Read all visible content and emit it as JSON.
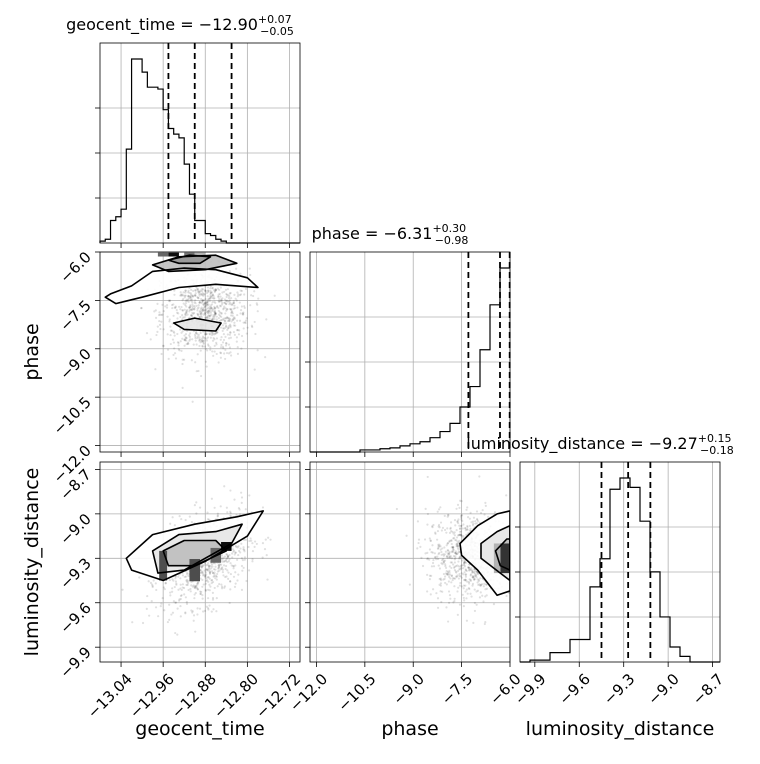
{
  "chart_data": {
    "type": "corner",
    "parameters": [
      {
        "name": "geocent_time",
        "axis_label": "geocent_time",
        "title_main": "geocent_time = −12.90",
        "title_sup": "+0.07",
        "title_sub": "−0.05",
        "range": [
          -13.08,
          -12.7
        ],
        "ticks": [
          -13.04,
          -12.96,
          -12.88,
          -12.8,
          -12.72
        ],
        "tick_labels": [
          "−13.04",
          "−12.96",
          "−12.88",
          "−12.80",
          "−12.72"
        ],
        "quantiles": [
          -12.95,
          -12.9,
          -12.83
        ],
        "hist": {
          "edges_start": -13.08,
          "bin_width": 0.01,
          "counts": [
            0.01,
            0.02,
            0.12,
            0.14,
            0.18,
            0.5,
            0.98,
            0.98,
            0.91,
            0.83,
            0.83,
            0.82,
            0.71,
            0.61,
            0.58,
            0.56,
            0.42,
            0.26,
            0.12,
            0.12,
            0.05,
            0.04,
            0.02,
            0.01,
            0.0,
            0.0,
            0.0,
            0.0,
            0.0,
            0.0,
            0.0,
            0.0,
            0.0,
            0.0,
            0.0,
            0.0,
            0.0,
            0.0
          ]
        }
      },
      {
        "name": "phase",
        "axis_label": "phase",
        "title_main": "phase = −6.31",
        "title_sup": "+0.30",
        "title_sub": "−0.98",
        "range": [
          -12.2,
          -6.0
        ],
        "ticks": [
          -12.0,
          -10.5,
          -9.0,
          -7.5,
          -6.0
        ],
        "tick_labels": [
          "−12.0",
          "−10.5",
          "−9.0",
          "−7.5",
          "−6.0"
        ],
        "quantiles": [
          -7.29,
          -6.31,
          -6.01
        ],
        "hist": {
          "edges_start": -12.2,
          "bin_width": 0.31,
          "counts": [
            0.0,
            0.0,
            0.0,
            0.0,
            0.0,
            0.005,
            0.005,
            0.008,
            0.01,
            0.015,
            0.02,
            0.025,
            0.035,
            0.05,
            0.07,
            0.11,
            0.16,
            0.25,
            0.36,
            0.45
          ]
        }
      },
      {
        "name": "luminosity_distance",
        "axis_label": "luminosity_distance",
        "title_main": "luminosity_distance = −9.27",
        "title_sup": "+0.15",
        "title_sub": "−0.18",
        "range": [
          -10.0,
          -8.65
        ],
        "ticks": [
          -9.9,
          -9.6,
          -9.3,
          -9.0,
          -8.7
        ],
        "tick_labels": [
          "−9.9",
          "−9.6",
          "−9.3",
          "−9.0",
          "−8.7"
        ],
        "quantiles": [
          -9.45,
          -9.27,
          -9.12
        ],
        "hist": {
          "edges_start": -10.0,
          "bin_width": 0.0675,
          "counts": [
            0.0,
            0.01,
            0.01,
            0.05,
            0.05,
            0.12,
            0.12,
            0.4,
            0.55,
            0.92,
            0.98,
            0.93,
            0.75,
            0.48,
            0.24,
            0.08,
            0.03,
            0.0,
            0.0,
            0.0
          ]
        }
      }
    ],
    "pairs": [
      {
        "x_param": "geocent_time",
        "y_param": "phase",
        "scatter_center": [
          -12.88,
          -7.9
        ],
        "cells": [
          {
            "x": -12.94,
            "y": -6.08,
            "w": 0.02,
            "h": 0.12,
            "value": 0.95
          },
          {
            "x": -12.96,
            "y": -6.08,
            "w": 0.02,
            "h": 0.12,
            "value": 0.6
          },
          {
            "x": -12.91,
            "y": -6.08,
            "w": 0.02,
            "h": 0.12,
            "value": 0.55
          },
          {
            "x": -12.89,
            "y": -6.08,
            "w": 0.02,
            "h": 0.12,
            "value": 0.3
          }
        ],
        "contours": [
          [
            [
              -13.06,
              -7.3
            ],
            [
              -13.02,
              -7.05
            ],
            [
              -12.98,
              -6.6
            ],
            [
              -12.92,
              -6.5
            ],
            [
              -12.86,
              -6.55
            ],
            [
              -12.8,
              -6.8
            ],
            [
              -12.78,
              -7.1
            ],
            [
              -12.86,
              -7.0
            ],
            [
              -12.93,
              -7.1
            ],
            [
              -13.0,
              -7.4
            ],
            [
              -13.05,
              -7.6
            ],
            [
              -13.07,
              -7.4
            ]
          ],
          [
            [
              -12.94,
              -8.2
            ],
            [
              -12.9,
              -8.05
            ],
            [
              -12.85,
              -8.2
            ],
            [
              -12.86,
              -8.45
            ],
            [
              -12.92,
              -8.4
            ]
          ],
          [
            [
              -12.98,
              -6.4
            ],
            [
              -12.93,
              -6.15
            ],
            [
              -12.86,
              -6.1
            ],
            [
              -12.82,
              -6.35
            ],
            [
              -12.88,
              -6.55
            ],
            [
              -12.95,
              -6.6
            ]
          ],
          [
            [
              -12.95,
              -6.25
            ],
            [
              -12.91,
              -6.1
            ],
            [
              -12.87,
              -6.15
            ],
            [
              -12.89,
              -6.35
            ],
            [
              -12.93,
              -6.35
            ]
          ]
        ]
      },
      {
        "x_param": "geocent_time",
        "y_param": "luminosity_distance",
        "scatter_center": [
          -12.88,
          -9.3
        ],
        "cells": [
          {
            "x": -12.96,
            "y": -9.35,
            "w": 0.015,
            "h": 0.2,
            "value": 0.7
          },
          {
            "x": -12.9,
            "y": -9.38,
            "w": 0.02,
            "h": 0.15,
            "value": 0.7
          },
          {
            "x": -12.86,
            "y": -9.28,
            "w": 0.02,
            "h": 0.1,
            "value": 0.6
          },
          {
            "x": -12.84,
            "y": -9.22,
            "w": 0.02,
            "h": 0.06,
            "value": 0.95
          }
        ],
        "contours": [
          [
            [
              -13.03,
              -9.3
            ],
            [
              -12.98,
              -9.14
            ],
            [
              -12.9,
              -9.07
            ],
            [
              -12.82,
              -9.02
            ],
            [
              -12.77,
              -8.98
            ],
            [
              -12.8,
              -9.15
            ],
            [
              -12.88,
              -9.32
            ],
            [
              -12.96,
              -9.45
            ],
            [
              -13.02,
              -9.38
            ]
          ],
          [
            [
              -12.98,
              -9.25
            ],
            [
              -12.93,
              -9.14
            ],
            [
              -12.86,
              -9.12
            ],
            [
              -12.81,
              -9.07
            ],
            [
              -12.83,
              -9.2
            ],
            [
              -12.92,
              -9.38
            ],
            [
              -12.97,
              -9.4
            ]
          ],
          [
            [
              -12.96,
              -9.25
            ],
            [
              -12.92,
              -9.18
            ],
            [
              -12.86,
              -9.18
            ],
            [
              -12.84,
              -9.25
            ],
            [
              -12.9,
              -9.35
            ],
            [
              -12.95,
              -9.35
            ]
          ]
        ]
      },
      {
        "x_param": "phase",
        "y_param": "luminosity_distance",
        "scatter_center": [
          -7.2,
          -9.28
        ],
        "cells": [
          {
            "x": -6.15,
            "y": -9.3,
            "w": 0.3,
            "h": 0.2,
            "value": 0.8
          },
          {
            "x": -6.4,
            "y": -9.3,
            "w": 0.2,
            "h": 0.2,
            "value": 0.3
          }
        ],
        "contours": [
          [
            [
              -7.55,
              -9.2
            ],
            [
              -7.0,
              -9.08
            ],
            [
              -6.4,
              -9.0
            ],
            [
              -6.0,
              -8.98
            ],
            [
              -6.0,
              -9.52
            ],
            [
              -6.4,
              -9.55
            ],
            [
              -7.0,
              -9.38
            ],
            [
              -7.5,
              -9.28
            ]
          ],
          [
            [
              -6.9,
              -9.2
            ],
            [
              -6.4,
              -9.12
            ],
            [
              -6.0,
              -9.08
            ],
            [
              -6.0,
              -9.45
            ],
            [
              -6.3,
              -9.4
            ],
            [
              -6.9,
              -9.3
            ]
          ],
          [
            [
              -6.45,
              -9.25
            ],
            [
              -6.1,
              -9.17
            ],
            [
              -6.0,
              -9.17
            ],
            [
              -6.0,
              -9.38
            ],
            [
              -6.3,
              -9.35
            ]
          ]
        ]
      }
    ]
  }
}
